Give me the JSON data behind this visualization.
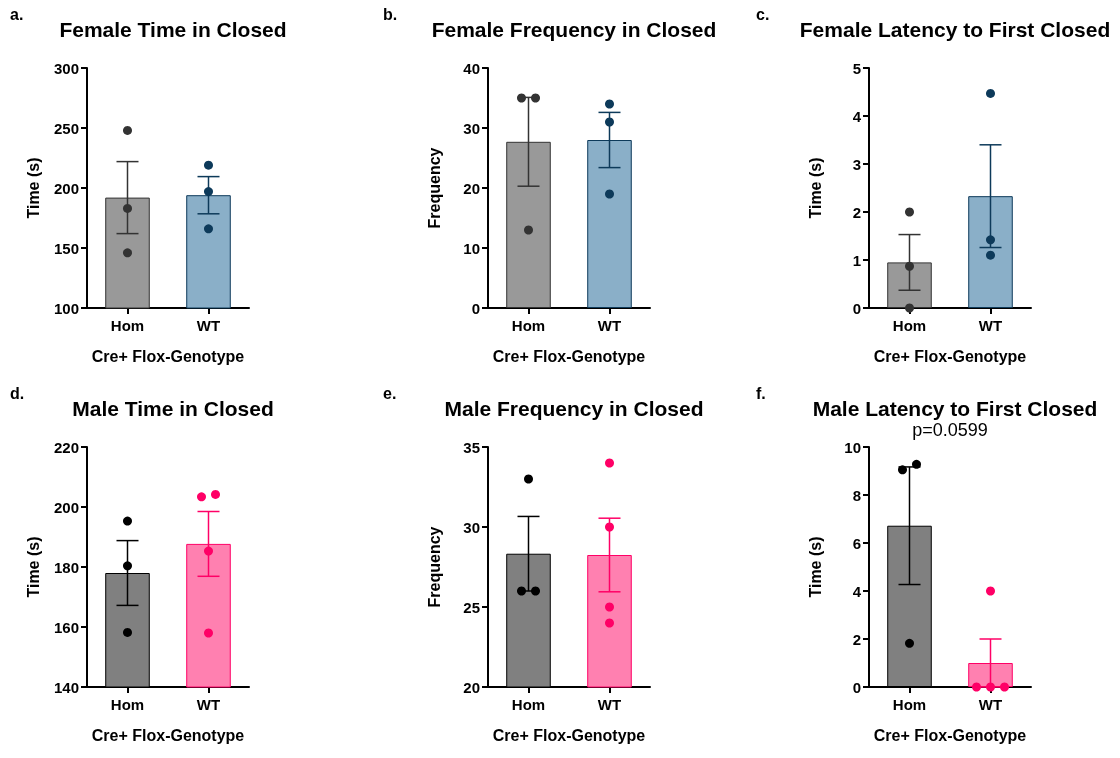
{
  "chart_data": [
    {
      "type": "bar",
      "title": "Female Time in Closed",
      "annotations": [
        "a."
      ],
      "xlabel": "Cre+ Flox-Genotype",
      "ylabel": "Time (s)",
      "categories": [
        "Hom",
        "WT"
      ],
      "ylim": [
        100,
        300
      ],
      "yticks": [
        100,
        150,
        200,
        250,
        300
      ],
      "marker": "circle",
      "series": [
        {
          "colors": [
            "#999999",
            "#8aafc8"
          ],
          "values": [
            192,
            194
          ],
          "errors": [
            30,
            15.5
          ]
        },
        {
          "type": "scatter",
          "x": [
            "Hom",
            "Hom",
            "Hom",
            "WT",
            "WT",
            "WT"
          ],
          "values": [
            248,
            183,
            146,
            219,
            197,
            166
          ],
          "colors": [
            "#333333",
            "#333333",
            "#333333",
            "#0d3a5a",
            "#0d3a5a",
            "#0d3a5a"
          ]
        }
      ]
    },
    {
      "type": "bar",
      "title": "Female Frequency in Closed",
      "annotations": [
        "b."
      ],
      "xlabel": "Cre+ Flox-Genotype",
      "ylabel": "Frequency",
      "categories": [
        "Hom",
        "WT"
      ],
      "ylim": [
        0,
        40
      ],
      "yticks": [
        0,
        10,
        20,
        30,
        40
      ],
      "marker": "circle",
      "series": [
        {
          "colors": [
            "#999999",
            "#8aafc8"
          ],
          "values": [
            27.7,
            28
          ],
          "errors": [
            7.4,
            4.6
          ]
        },
        {
          "type": "scatter",
          "x": [
            "Hom",
            "Hom",
            "Hom",
            "WT",
            "WT",
            "WT"
          ],
          "values": [
            35,
            35,
            13,
            34,
            31,
            19
          ],
          "colors": [
            "#333333",
            "#333333",
            "#333333",
            "#0d3a5a",
            "#0d3a5a",
            "#0d3a5a"
          ]
        }
      ]
    },
    {
      "type": "bar",
      "title": "Female Latency to First Closed",
      "annotations": [
        "c."
      ],
      "xlabel": "Cre+ Flox-Genotype",
      "ylabel": "Time (s)",
      "categories": [
        "Hom",
        "WT"
      ],
      "ylim": [
        0,
        5
      ],
      "yticks": [
        0,
        1,
        2,
        3,
        4,
        5
      ],
      "marker": "circle",
      "series": [
        {
          "colors": [
            "#999999",
            "#8aafc8"
          ],
          "values": [
            0.95,
            2.33
          ],
          "errors": [
            0.58,
            1.07
          ]
        },
        {
          "type": "scatter",
          "x": [
            "Hom",
            "Hom",
            "Hom",
            "WT",
            "WT",
            "WT"
          ],
          "values": [
            2,
            0.87,
            0,
            4.47,
            1.42,
            1.1
          ],
          "colors": [
            "#333333",
            "#333333",
            "#333333",
            "#0d3a5a",
            "#0d3a5a",
            "#0d3a5a"
          ]
        }
      ]
    },
    {
      "type": "bar",
      "title": "Male Time in Closed",
      "annotations": [
        "d."
      ],
      "xlabel": "Cre+ Flox-Genotype",
      "ylabel": "Time (s)",
      "categories": [
        "Hom",
        "WT"
      ],
      "ylim": [
        140,
        220
      ],
      "yticks": [
        140,
        160,
        180,
        200,
        220
      ],
      "marker": "circle",
      "series": [
        {
          "colors": [
            "#808080",
            "#ff80b0"
          ],
          "values": [
            178,
            187.7
          ],
          "errors": [
            10.8,
            10.8
          ]
        },
        {
          "type": "scatter",
          "x": [
            "Hom",
            "Hom",
            "Hom",
            "WT",
            "WT",
            "WT",
            "WT"
          ],
          "values": [
            195.3,
            180.4,
            158.2,
            203.4,
            204.2,
            185.3,
            158
          ],
          "colors": [
            "#000000",
            "#000000",
            "#000000",
            "#ff0066",
            "#ff0066",
            "#ff0066",
            "#ff0066"
          ]
        }
      ]
    },
    {
      "type": "bar",
      "title": "Male Frequency in Closed",
      "annotations": [
        "e."
      ],
      "xlabel": "Cre+ Flox-Genotype",
      "ylabel": "Frequency",
      "categories": [
        "Hom",
        "WT"
      ],
      "ylim": [
        20,
        35
      ],
      "yticks": [
        20,
        25,
        30,
        35
      ],
      "marker": "circle",
      "series": [
        {
          "colors": [
            "#808080",
            "#ff80b0"
          ],
          "values": [
            28.33,
            28.25
          ],
          "errors": [
            2.33,
            2.3
          ]
        },
        {
          "type": "scatter",
          "x": [
            "Hom",
            "Hom",
            "Hom",
            "WT",
            "WT",
            "WT",
            "WT"
          ],
          "values": [
            33,
            26,
            26,
            34,
            30,
            25,
            24
          ],
          "colors": [
            "#000000",
            "#000000",
            "#000000",
            "#ff0066",
            "#ff0066",
            "#ff0066",
            "#ff0066"
          ]
        }
      ]
    },
    {
      "type": "bar",
      "title": "Male Latency to First Closed",
      "annotations": [
        "f.",
        "p=0.0599"
      ],
      "xlabel": "Cre+ Flox-Genotype",
      "ylabel": "Time (s)",
      "categories": [
        "Hom",
        "WT"
      ],
      "ylim": [
        0,
        10
      ],
      "yticks": [
        0,
        2,
        4,
        6,
        8,
        10
      ],
      "marker": "circle",
      "series": [
        {
          "colors": [
            "#808080",
            "#ff80b0"
          ],
          "values": [
            6.72,
            1
          ],
          "errors": [
            2.45,
            1
          ]
        },
        {
          "type": "scatter",
          "x": [
            "Hom",
            "Hom",
            "Hom",
            "WT",
            "WT",
            "WT",
            "WT"
          ],
          "values": [
            9.28,
            9.05,
            1.82,
            4,
            0,
            0,
            0
          ],
          "colors": [
            "#000000",
            "#000000",
            "#000000",
            "#ff0066",
            "#ff0066",
            "#ff0066",
            "#ff0066"
          ]
        }
      ]
    }
  ]
}
